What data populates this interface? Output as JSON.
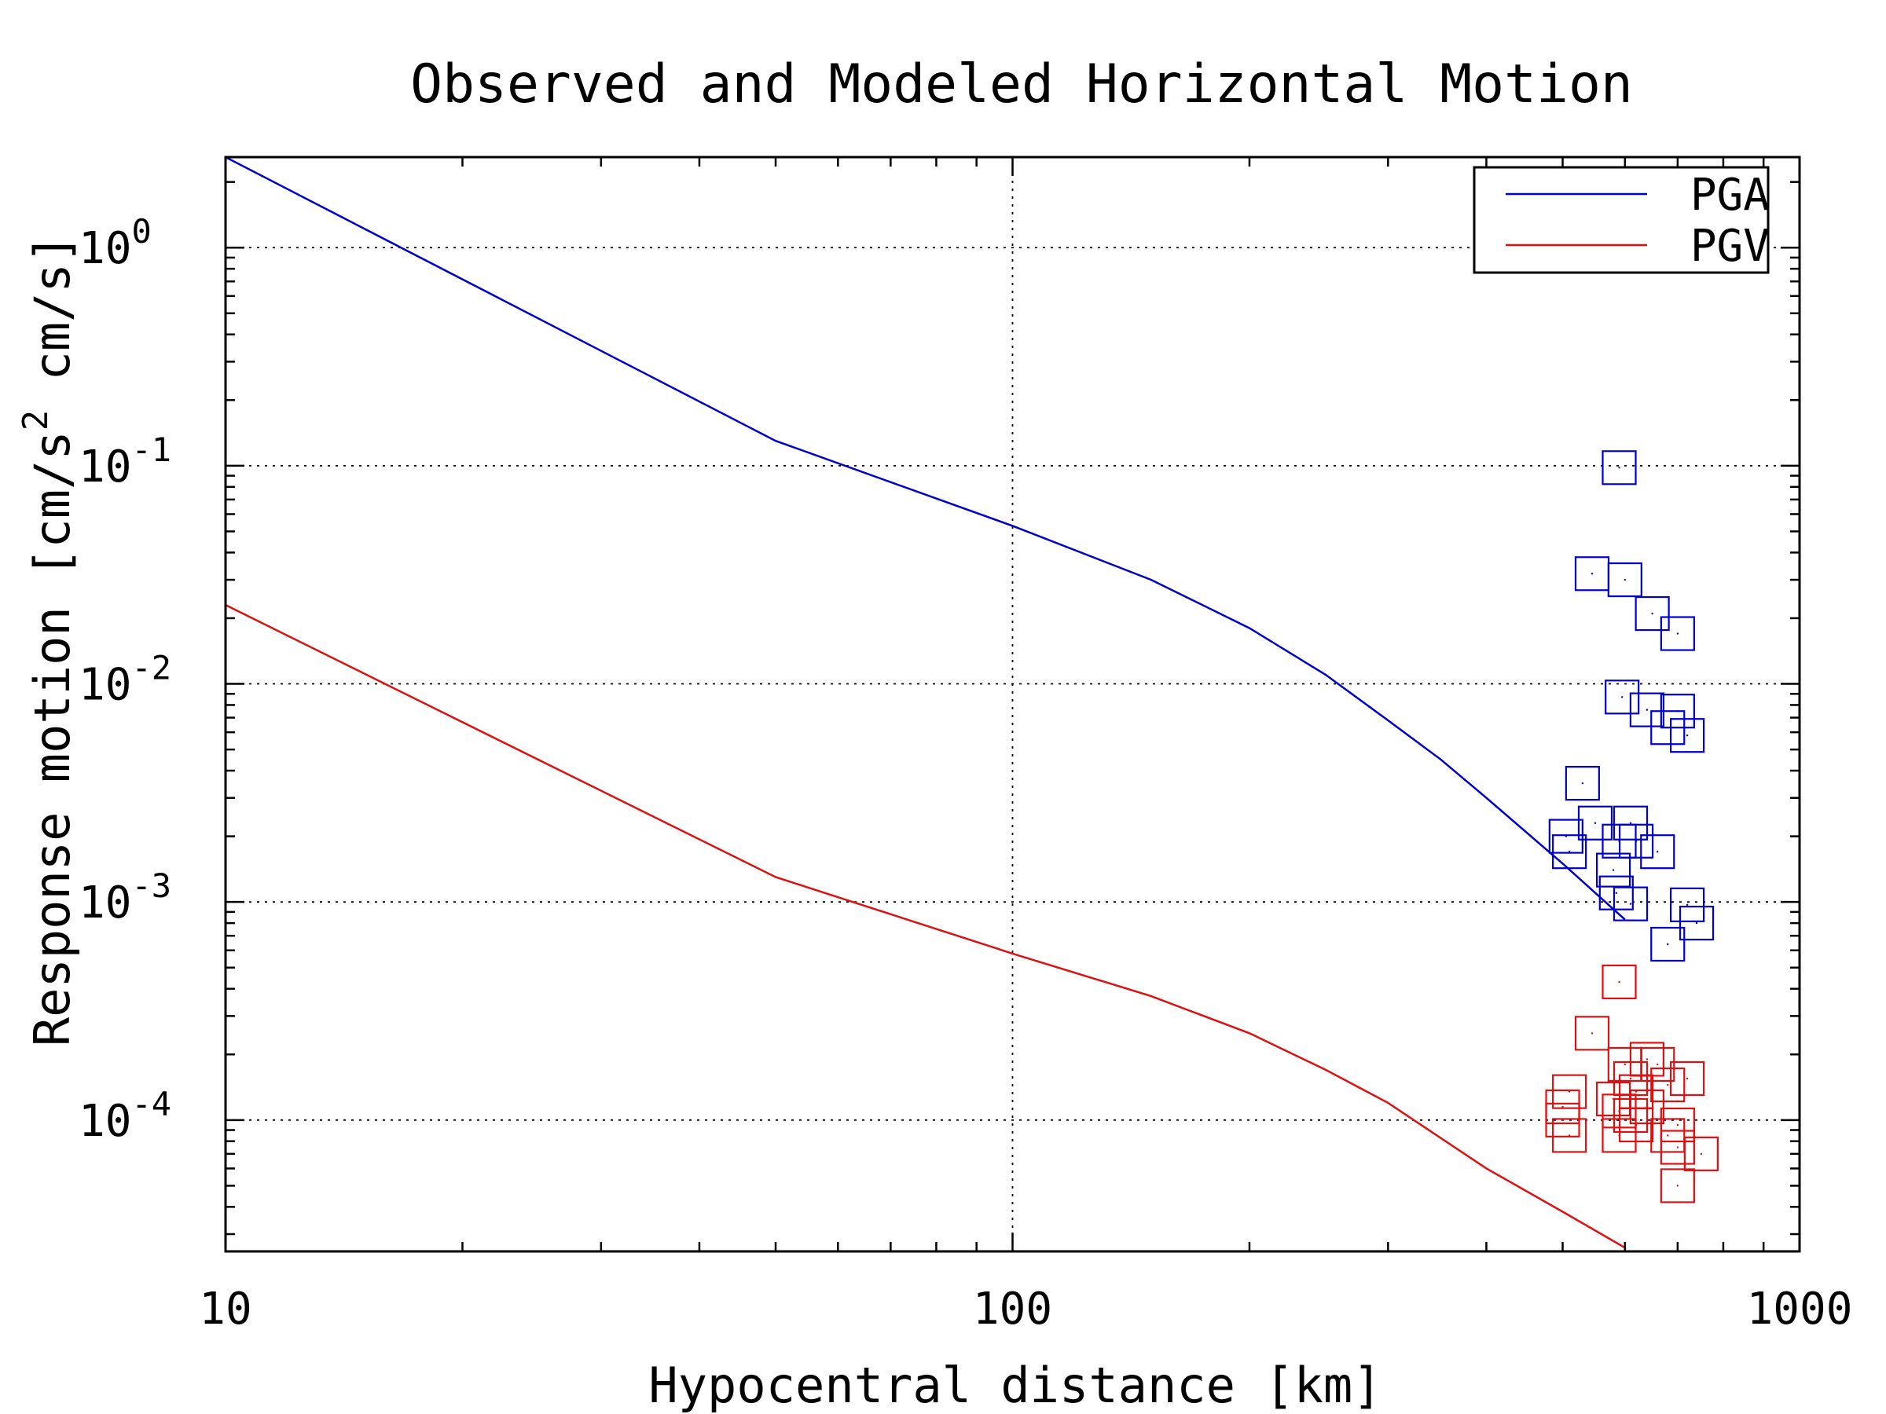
{
  "colors": {
    "pga": "#0000cc",
    "pgv": "#dd1111",
    "axis": "#000000"
  },
  "chart_data": {
    "type": "scatter",
    "title": "Observed and Modeled Horizontal Motion",
    "xlabel": "Hypocentral distance [km]",
    "ylabel": "Response motion [cm/s² cm/s]",
    "ylabel_parts": {
      "pre": "Response motion [cm/s",
      "sup": "2",
      "post": " cm/s]"
    },
    "xscale": "log",
    "yscale": "log",
    "xlim": [
      10,
      1000
    ],
    "ylim": [
      2.5e-05,
      2.6
    ],
    "x_ticks": [
      {
        "value": 10,
        "label": "10"
      },
      {
        "value": 100,
        "label": "100"
      },
      {
        "value": 1000,
        "label": "1000"
      }
    ],
    "y_ticks": [
      {
        "value": 1,
        "base": "10",
        "exp": "0"
      },
      {
        "value": 0.1,
        "base": "10",
        "exp": "-1"
      },
      {
        "value": 0.01,
        "base": "10",
        "exp": "-2"
      },
      {
        "value": 0.001,
        "base": "10",
        "exp": "-3"
      },
      {
        "value": 0.0001,
        "base": "10",
        "exp": "-4"
      }
    ],
    "grid": true,
    "legend_position": "top-right",
    "series": [
      {
        "name": "PGA",
        "color": "#0000cc",
        "line": {
          "x": [
            10,
            50,
            100,
            150,
            200,
            250,
            300,
            350,
            400,
            500,
            600
          ],
          "y": [
            2.6,
            0.13,
            0.053,
            0.03,
            0.018,
            0.011,
            0.0068,
            0.0045,
            0.003,
            0.0015,
            0.00083
          ]
        },
        "points": {
          "x": [
            590,
            545,
            600,
            650,
            700,
            595,
            640,
            700,
            680,
            720,
            530,
            550,
            610,
            505,
            510,
            590,
            620,
            660,
            580,
            585,
            610,
            720,
            740,
            680
          ],
          "y": [
            0.098,
            0.032,
            0.03,
            0.021,
            0.017,
            0.0087,
            0.0076,
            0.0075,
            0.0063,
            0.0058,
            0.0035,
            0.0023,
            0.0023,
            0.002,
            0.0017,
            0.0019,
            0.0019,
            0.0017,
            0.0014,
            0.0011,
            0.00098,
            0.00097,
            0.0008,
            0.00064
          ]
        }
      },
      {
        "name": "PGV",
        "color": "#dd1111",
        "line": {
          "x": [
            10,
            50,
            100,
            150,
            200,
            250,
            300,
            400,
            500,
            600
          ],
          "y": [
            0.023,
            0.0013,
            0.00058,
            0.00037,
            0.00025,
            0.00017,
            0.00012,
            6e-05,
            3.8e-05,
            2.6e-05
          ]
        },
        "points": {
          "x": [
            590,
            545,
            640,
            660,
            600,
            610,
            720,
            510,
            500,
            580,
            590,
            610,
            640,
            620,
            680,
            700,
            500,
            510,
            590,
            620,
            680,
            700,
            750,
            700
          ],
          "y": [
            0.00043,
            0.00025,
            0.00019,
            0.00018,
            0.00018,
            0.000155,
            0.000155,
            0.000135,
            0.000115,
            0.000125,
            0.00011,
            0.000105,
            0.000115,
            0.000135,
            0.000145,
            9.5e-05,
            0.0001,
            8.5e-05,
            8.5e-05,
            9.5e-05,
            8.5e-05,
            7.5e-05,
            7e-05,
            5e-05
          ]
        }
      }
    ]
  }
}
